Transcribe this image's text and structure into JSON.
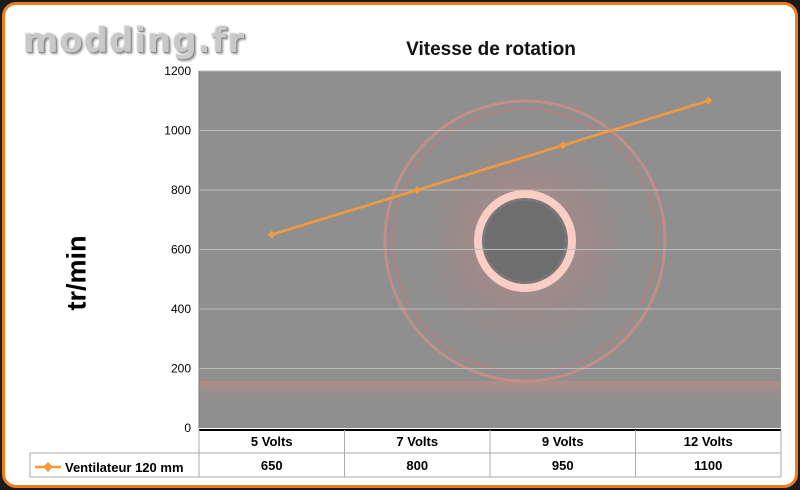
{
  "watermark": "modding.fr",
  "chart_data": {
    "type": "line",
    "title": "Vitesse de rotation",
    "ylabel": "tr/min",
    "xlabel": "",
    "categories": [
      "5 Volts",
      "7 Volts",
      "9 Volts",
      "12 Volts"
    ],
    "series": [
      {
        "name": "Ventilateur 120 mm",
        "values": [
          650,
          800,
          950,
          1100
        ]
      }
    ],
    "ylim": [
      0,
      1200
    ],
    "yticks": [
      "0",
      "200",
      "400",
      "600",
      "800",
      "1000",
      "1200"
    ],
    "grid": true,
    "legend": "data-table",
    "colors": {
      "series": "#f39a3c",
      "plot_bg": "#8f8f8f",
      "frame": "#f07a1c"
    }
  }
}
